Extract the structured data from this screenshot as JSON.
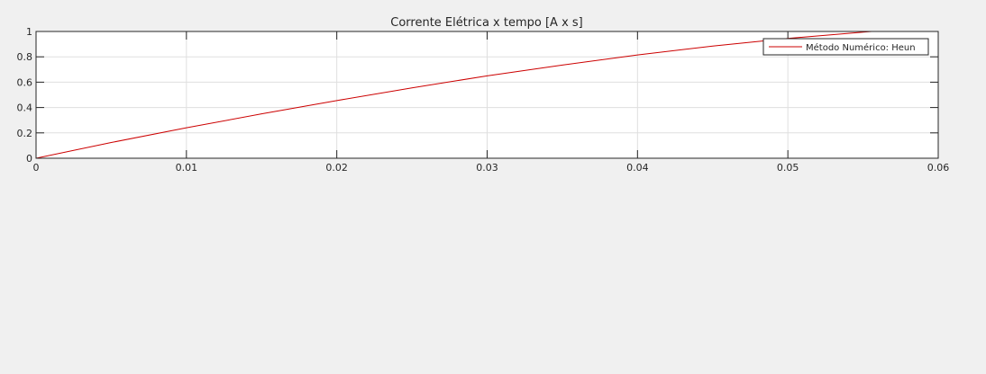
{
  "chart_data": {
    "type": "line",
    "title": "Corrente Elétrica x tempo [A x s]",
    "xlabel": "",
    "ylabel": "",
    "xlim": [
      0,
      0.06
    ],
    "ylim": [
      0,
      1
    ],
    "x_ticks": [
      0,
      0.01,
      0.02,
      0.03,
      0.04,
      0.05,
      0.06
    ],
    "x_tick_labels": [
      "0",
      "0.01",
      "0.02",
      "0.03",
      "0.04",
      "0.05",
      "0.06"
    ],
    "y_ticks": [
      0,
      0.2,
      0.4,
      0.6,
      0.8,
      1
    ],
    "y_tick_labels": [
      "0",
      "0.2",
      "0.4",
      "0.6",
      "0.8",
      "1"
    ],
    "grid": true,
    "legend_position": "top-right",
    "series": [
      {
        "name": "Método Numérico: Heun",
        "color": "#cc0000",
        "x": [
          0,
          0.005,
          0.01,
          0.015,
          0.02,
          0.025,
          0.03,
          0.035,
          0.04,
          0.045,
          0.05,
          0.055,
          0.06
        ],
        "y": [
          0,
          0.124,
          0.24,
          0.35,
          0.455,
          0.555,
          0.65,
          0.735,
          0.815,
          0.885,
          0.945,
          0.995,
          1.04
        ]
      }
    ]
  }
}
